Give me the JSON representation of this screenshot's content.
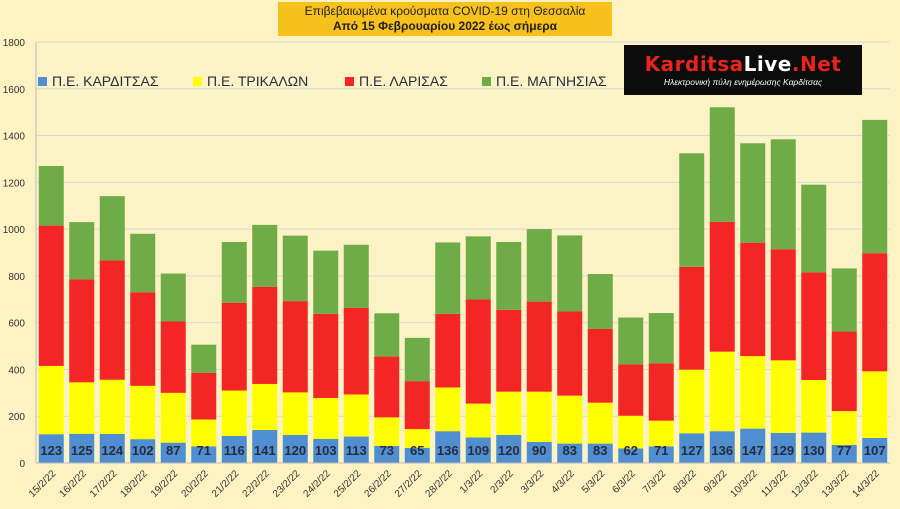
{
  "header": {
    "title_line1": "Επιβεβαιωμένα κρούσματα COVID-19 στη Θεσσαλία",
    "title_line2": "Από 15 Φεβρουαρίου 2022 έως σήμερα"
  },
  "logo": {
    "brand_part1": "Karditsa",
    "brand_part2": "Live",
    "brand_part3": ".Net",
    "tagline": "Ηλεκτρονική πύλη ενημέρωσης Καρδίτσας"
  },
  "colors": {
    "karditsa": "#4f8ed0",
    "trikala": "#ffff00",
    "larisa": "#f32525",
    "magnisia": "#6fab47",
    "plot_bg": "#fbf3c6",
    "grid": "#d8d8d8"
  },
  "chart_data": {
    "type": "bar",
    "stacked": true,
    "legend_position": "top-left",
    "grid": true,
    "ylim": [
      0,
      1800
    ],
    "yticks": [
      0,
      200,
      400,
      600,
      800,
      1000,
      1200,
      1400,
      1600,
      1800
    ],
    "categories": [
      "15/2/22",
      "16/2/22",
      "17/2/22",
      "18/2/22",
      "19/2/22",
      "20/2/22",
      "21/2/22",
      "22/2/22",
      "23/2/22",
      "24/2/22",
      "25/2/22",
      "26/2/22",
      "27/2/22",
      "28/2/22",
      "1/3/22",
      "2/3/22",
      "3/3/22",
      "4/3/22",
      "5/3/22",
      "6/3/22",
      "7/3/22",
      "8/3/22",
      "9/3/22",
      "10/3/22",
      "11/3/22",
      "12/3/22",
      "13/3/22",
      "14/3/22"
    ],
    "series": [
      {
        "name": "Π.Ε. ΚΑΡΔΙΤΣΑΣ",
        "values": [
          123,
          125,
          124,
          102,
          87,
          71,
          116,
          141,
          120,
          103,
          113,
          73,
          65,
          136,
          109,
          120,
          90,
          83,
          83,
          62,
          71,
          127,
          136,
          147,
          129,
          130,
          77,
          107
        ]
      },
      {
        "name": "Π.Ε. ΤΡΙΚΑΛΩΝ",
        "values": [
          292,
          220,
          232,
          228,
          213,
          115,
          194,
          197,
          182,
          175,
          180,
          122,
          80,
          187,
          145,
          185,
          215,
          205,
          175,
          140,
          110,
          272,
          340,
          310,
          310,
          225,
          145,
          285
        ]
      },
      {
        "name": "Π.Ε. ΛΑΡΙΣΑΣ",
        "values": [
          600,
          440,
          510,
          400,
          305,
          200,
          375,
          415,
          390,
          360,
          370,
          260,
          205,
          315,
          445,
          350,
          385,
          360,
          315,
          220,
          245,
          440,
          555,
          485,
          475,
          460,
          340,
          505
        ]
      },
      {
        "name": "Π.Ε. ΜΑΓΝΗΣΙΑΣ",
        "values": [
          255,
          245,
          275,
          250,
          205,
          120,
          260,
          265,
          280,
          270,
          270,
          185,
          185,
          305,
          270,
          290,
          310,
          325,
          235,
          200,
          215,
          485,
          490,
          425,
          470,
          375,
          270,
          570
        ]
      }
    ],
    "data_labels": "Π.Ε. ΚΑΡΔΙΤΣΑΣ"
  }
}
